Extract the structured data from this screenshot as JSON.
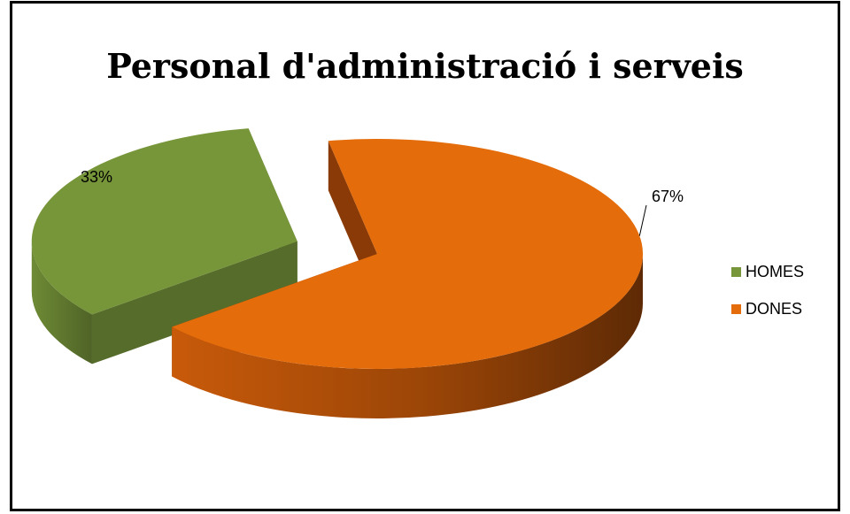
{
  "chart_data": {
    "type": "pie",
    "title": "Personal d'administració i serveis",
    "style": "3d-exploded",
    "legend_position": "right",
    "series": [
      {
        "name": "HOMES",
        "value": 33,
        "label": "33%",
        "color": "#77963a",
        "side_color": "#566c2a"
      },
      {
        "name": "DONES",
        "value": 67,
        "label": "67%",
        "color": "#e46c0a",
        "side_color": "#8a3a06"
      }
    ]
  }
}
